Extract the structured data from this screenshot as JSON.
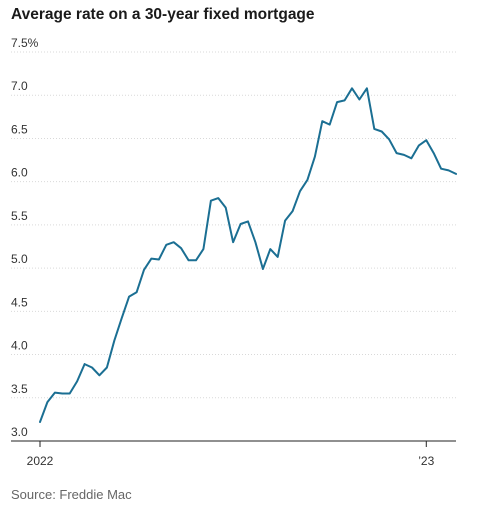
{
  "chart_data": {
    "type": "line",
    "title": "Average rate on a 30-year fixed mortgage",
    "source": "Source: Freddie Mac",
    "xlabel": "",
    "ylabel": "",
    "ylim": [
      3.0,
      7.5
    ],
    "y_ticks": [
      3.0,
      3.5,
      4.0,
      4.5,
      5.0,
      5.5,
      6.0,
      6.5,
      7.0,
      7.5
    ],
    "y_tick_labels": [
      "3.0",
      "3.5",
      "4.0",
      "4.5",
      "5.0",
      "5.5",
      "6.0",
      "6.5",
      "7.0",
      "7.5%"
    ],
    "x_ticks": [
      0,
      52
    ],
    "x_tick_labels": [
      "2022",
      "’23"
    ],
    "grid": true,
    "line_color": "#1b6f93",
    "series": [
      {
        "x": [
          0,
          1,
          2,
          3,
          4,
          5,
          6,
          7,
          8,
          9,
          10,
          11,
          12,
          13,
          14,
          15,
          16,
          17,
          18,
          19,
          20,
          21,
          22,
          23,
          24,
          25,
          26,
          27,
          28,
          29,
          30,
          31,
          32,
          33,
          34,
          35,
          36,
          37,
          38,
          39,
          40,
          41,
          42,
          43,
          44,
          45,
          46,
          47,
          48,
          49,
          50,
          51,
          52,
          53,
          54,
          55,
          56
        ],
        "values": [
          3.22,
          3.45,
          3.56,
          3.55,
          3.55,
          3.69,
          3.89,
          3.85,
          3.76,
          3.85,
          4.16,
          4.42,
          4.67,
          4.72,
          4.98,
          5.11,
          5.1,
          5.27,
          5.3,
          5.23,
          5.09,
          5.09,
          5.22,
          5.78,
          5.81,
          5.7,
          5.3,
          5.51,
          5.54,
          5.3,
          4.99,
          5.22,
          5.13,
          5.55,
          5.66,
          5.89,
          6.02,
          6.29,
          6.7,
          6.66,
          6.92,
          6.94,
          7.08,
          6.95,
          7.08,
          6.61,
          6.58,
          6.49,
          6.33,
          6.31,
          6.27,
          6.42,
          6.48,
          6.33,
          6.15,
          6.13,
          6.09
        ]
      }
    ]
  }
}
